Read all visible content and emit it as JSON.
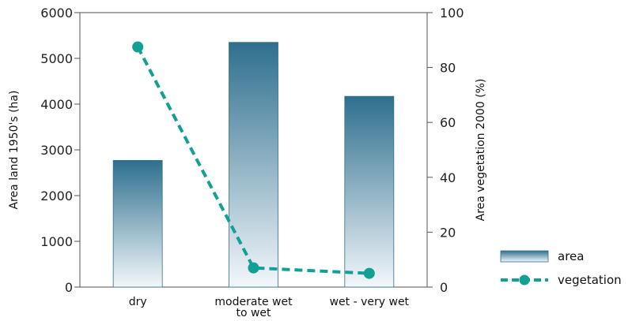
{
  "chart_data": {
    "type": "bar",
    "categories": [
      [
        "dry"
      ],
      [
        "moderate wet",
        "to wet"
      ],
      [
        "wet - very wet"
      ]
    ],
    "series": [
      {
        "name": "area",
        "type": "bar",
        "axis": "left",
        "values": [
          2770,
          5350,
          4170
        ]
      },
      {
        "name": "vegetation",
        "type": "line",
        "axis": "right",
        "values": [
          87.5,
          7,
          5
        ]
      }
    ],
    "y_left": {
      "label": "Area land 1950's (ha)",
      "ylim": [
        0,
        6000
      ],
      "ticks": [
        0,
        1000,
        2000,
        3000,
        4000,
        5000,
        6000
      ]
    },
    "y_right": {
      "label": "Area vegetation 2000 (%)",
      "ylim": [
        0,
        100
      ],
      "ticks": [
        0,
        20,
        40,
        60,
        80,
        100
      ]
    },
    "legend": {
      "placement": "bottom-right",
      "entries": [
        "area",
        "vegetation"
      ]
    },
    "grid": false,
    "colors": {
      "bar_top": "#2e6f8e",
      "bar_bottom": "#f3f7fb",
      "bar_edge": "#2e6f8e",
      "line": "#12a094",
      "axis": "#555555"
    }
  }
}
